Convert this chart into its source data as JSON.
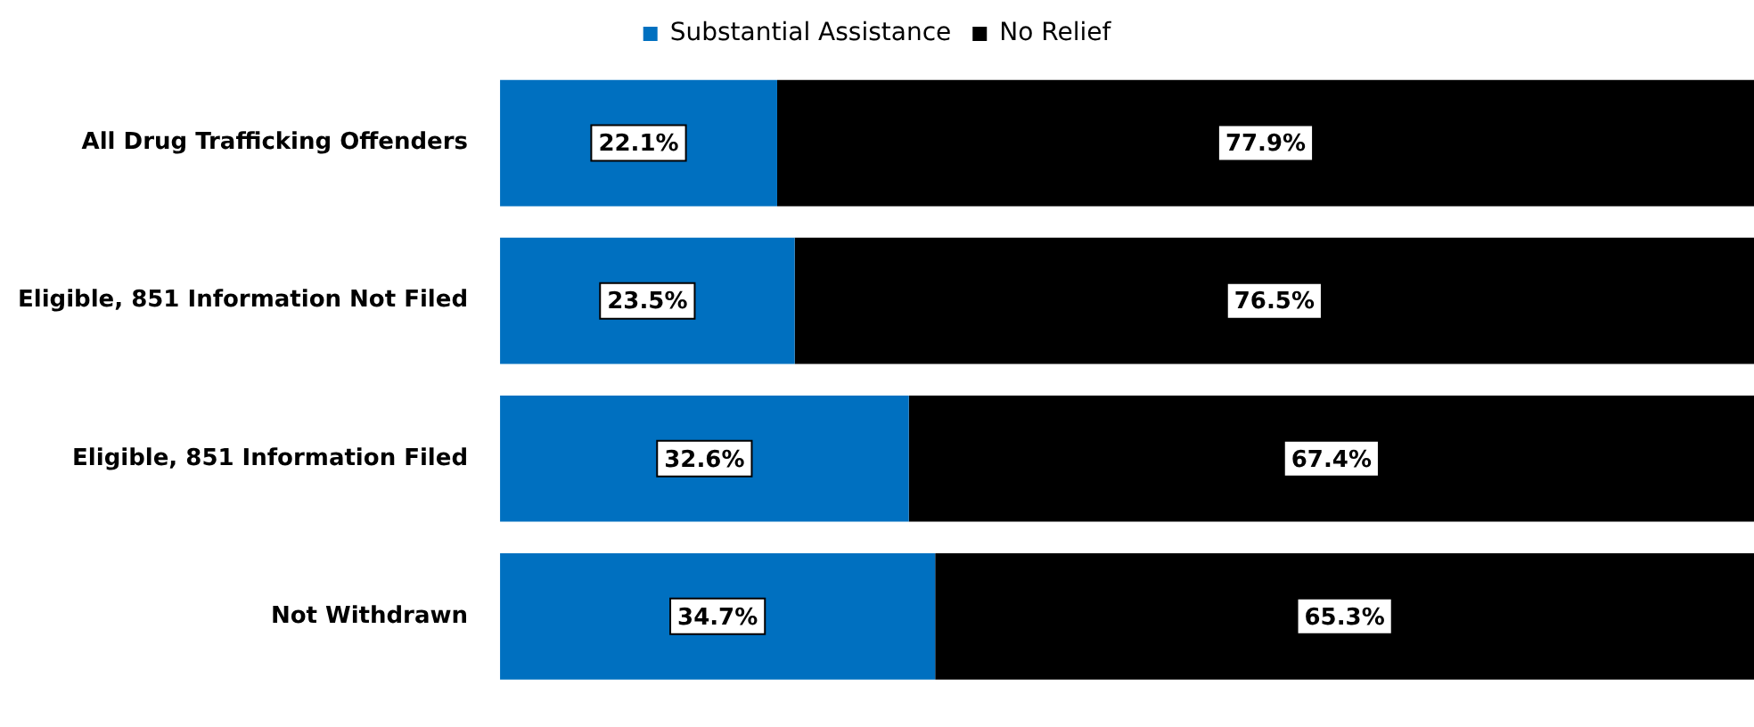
{
  "chart_data": {
    "type": "bar",
    "orientation": "horizontal",
    "stacked": true,
    "categories": [
      "All Drug Trafficking Offenders",
      "Eligible, 851 Information Not Filed",
      "Eligible, 851 Information Filed",
      "Not Withdrawn"
    ],
    "series": [
      {
        "name": "Substantial Assistance",
        "color": "#0070c0",
        "values": [
          22.1,
          23.5,
          32.6,
          34.7
        ],
        "value_labels": [
          "22.1%",
          "23.5%",
          "32.6%",
          "34.7%"
        ]
      },
      {
        "name": "No Relief",
        "color": "#000000",
        "values": [
          77.9,
          76.5,
          67.4,
          65.3
        ],
        "value_labels": [
          "77.9%",
          "76.5%",
          "67.4%",
          "65.3%"
        ]
      }
    ],
    "xlim": [
      0,
      100
    ],
    "legend": "top",
    "tick_labels": "y"
  }
}
